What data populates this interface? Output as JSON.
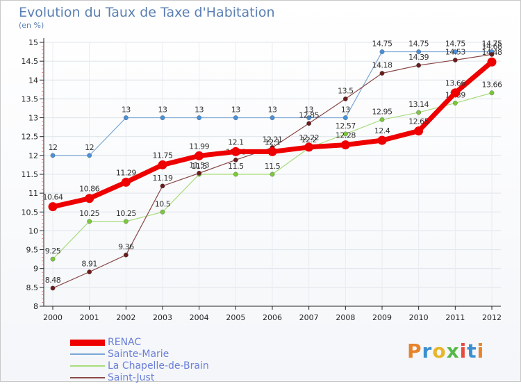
{
  "header": {
    "title": "Evolution du Taux de Taxe d'Habitation",
    "subtitle": "(en %)"
  },
  "logo": {
    "text": "Proxiti",
    "colors": [
      "#e8832a",
      "#3c8fd0",
      "#e8b52a",
      "#57b848",
      "#e84a3c",
      "#3c8fd0",
      "#e8832a"
    ]
  },
  "chart_data": {
    "type": "line",
    "x": [
      "2000",
      "2001",
      "2002",
      "2003",
      "2004",
      "2005",
      "2006",
      "2007",
      "2008",
      "2009",
      "2010",
      "2011",
      "2012"
    ],
    "ylim": [
      8,
      15
    ],
    "yticks": [
      "8",
      "8.5",
      "9",
      "9.5",
      "10",
      "10.5",
      "11",
      "11.5",
      "12",
      "12.5",
      "13",
      "13.5",
      "14",
      "14.5",
      "15"
    ],
    "legend": "bottom-left",
    "grid": true,
    "series": [
      {
        "name": "Sainte-Marie",
        "color": "#7aa6d6",
        "point": "#4a90d8",
        "width": 1.2,
        "radius": 3.2,
        "values": [
          12,
          12,
          13,
          13,
          13,
          13,
          13,
          13,
          13,
          14.75,
          14.75,
          14.75,
          14.75
        ],
        "labels": [
          "12",
          "12",
          "13",
          "13",
          "13",
          "13",
          "13",
          "13",
          "13",
          "14.75",
          "14.75",
          "14.75",
          "14.75"
        ]
      },
      {
        "name": "La Chapelle-de-Brain",
        "color": "#a8dc7a",
        "point": "#7bc83a",
        "width": 1.2,
        "radius": 3.2,
        "values": [
          9.25,
          10.25,
          10.25,
          10.5,
          11.5,
          11.5,
          11.5,
          12.2,
          12.57,
          12.95,
          13.14,
          13.39,
          13.66
        ],
        "labels": [
          "9.25",
          "10.25",
          "10.25",
          "10.5",
          "11.5",
          "11.5",
          "11.5",
          "12.2",
          "12.57",
          "12.95",
          "13.14",
          "13.39",
          "13.66"
        ]
      },
      {
        "name": "Saint-Just",
        "color": "#8a4848",
        "point": "#6a1c1c",
        "width": 1.2,
        "radius": 3.2,
        "values": [
          8.48,
          8.91,
          9.36,
          11.19,
          11.53,
          11.88,
          12.21,
          12.85,
          13.5,
          14.18,
          14.39,
          14.53,
          14.68
        ],
        "labels": [
          "8.48",
          "8.91",
          "9.36",
          "11.19",
          "11.53",
          "11.88",
          "12.21",
          "12.85",
          "13.5",
          "14.18",
          "14.39",
          "14.53",
          "14.68"
        ]
      },
      {
        "name": "RENAC",
        "color": "#ee0000",
        "point": "#ee0000",
        "width": 7,
        "radius": 6.5,
        "values": [
          10.64,
          10.86,
          11.29,
          11.75,
          11.99,
          12.1,
          12.1,
          12.22,
          12.28,
          12.4,
          12.65,
          13.66,
          14.48
        ],
        "labels": [
          "10.64",
          "10.86",
          "11.29",
          "11.75",
          "11.99",
          "12.1",
          "12.1",
          "12.22",
          "12.28",
          "12.4",
          "12.65",
          "13.66",
          "14.48"
        ]
      }
    ],
    "legend_order": [
      "RENAC",
      "Sainte-Marie",
      "La Chapelle-de-Brain",
      "Saint-Just"
    ]
  }
}
